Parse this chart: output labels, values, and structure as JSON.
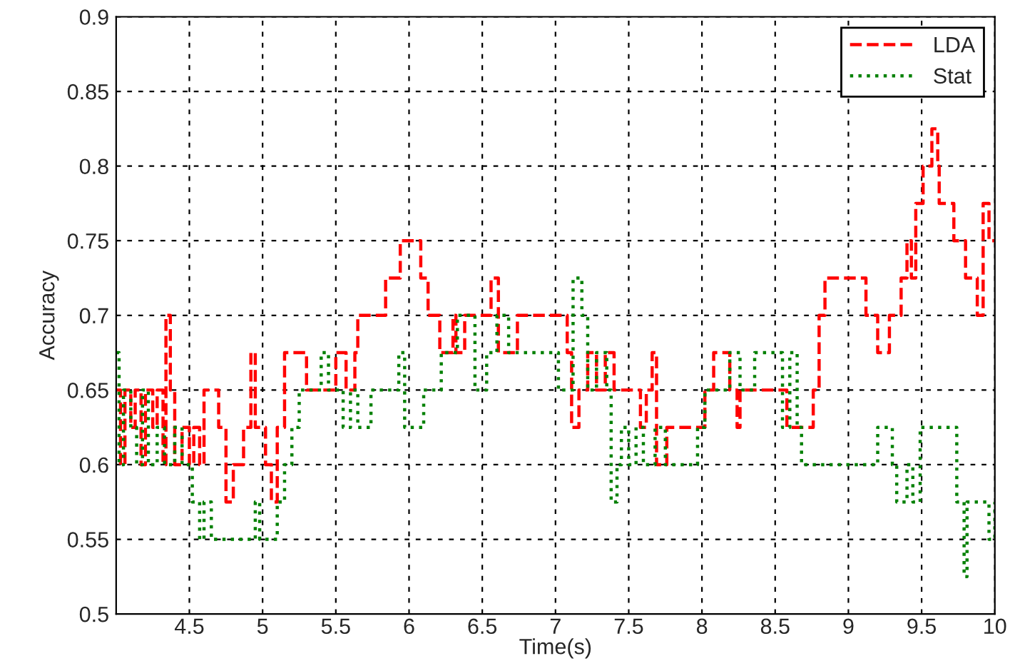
{
  "chart_data": {
    "type": "step",
    "xlabel": "Time(s)",
    "ylabel": "Accuracy",
    "xlim": [
      4,
      10
    ],
    "xticks": [
      4.5,
      5,
      5.5,
      6,
      6.5,
      7,
      7.5,
      8,
      8.5,
      9,
      9.5,
      10
    ],
    "ylim": [
      0.5,
      0.9
    ],
    "yticks": [
      0.5,
      0.55,
      0.6,
      0.65,
      0.7,
      0.75,
      0.8,
      0.85,
      0.9
    ],
    "grid": true,
    "legend": "top right",
    "series": [
      {
        "name": "LDA",
        "color": "#ff0000",
        "line_style": "dashed",
        "x": [
          4.0,
          4.03,
          4.06,
          4.1,
          4.13,
          4.17,
          4.2,
          4.25,
          4.28,
          4.32,
          4.34,
          4.37,
          4.4,
          4.45,
          4.5,
          4.53,
          4.57,
          4.6,
          4.7,
          4.75,
          4.8,
          4.87,
          4.92,
          4.95,
          5.02,
          5.06,
          5.1,
          5.15,
          5.3,
          5.5,
          5.57,
          5.63,
          5.65,
          5.84,
          5.94,
          6.08,
          6.13,
          6.21,
          6.3,
          6.32,
          6.38,
          6.56,
          6.61,
          6.74,
          7.08,
          7.11,
          7.16,
          7.22,
          7.28,
          7.34,
          7.4,
          7.58,
          7.62,
          7.66,
          7.69,
          7.76,
          8.02,
          8.08,
          8.19,
          8.24,
          8.26,
          8.58,
          8.76,
          8.8,
          8.84,
          9.12,
          9.2,
          9.28,
          9.36,
          9.4,
          9.43,
          9.46,
          9.51,
          9.57,
          9.61,
          9.62,
          9.72,
          9.8,
          9.88,
          9.92,
          9.96,
          10.0
        ],
        "values": [
          0.65,
          0.6,
          0.65,
          0.625,
          0.65,
          0.6,
          0.65,
          0.625,
          0.65,
          0.6,
          0.7,
          0.65,
          0.6,
          0.625,
          0.6,
          0.625,
          0.6,
          0.65,
          0.625,
          0.575,
          0.6,
          0.625,
          0.675,
          0.625,
          0.6,
          0.575,
          0.625,
          0.675,
          0.65,
          0.675,
          0.65,
          0.675,
          0.7,
          0.725,
          0.75,
          0.725,
          0.7,
          0.675,
          0.7,
          0.675,
          0.7,
          0.725,
          0.675,
          0.7,
          0.675,
          0.625,
          0.65,
          0.675,
          0.65,
          0.675,
          0.65,
          0.625,
          0.65,
          0.675,
          0.6,
          0.625,
          0.65,
          0.675,
          0.65,
          0.625,
          0.65,
          0.625,
          0.65,
          0.7,
          0.725,
          0.7,
          0.675,
          0.7,
          0.725,
          0.75,
          0.725,
          0.775,
          0.8,
          0.825,
          0.8,
          0.775,
          0.75,
          0.725,
          0.7,
          0.775,
          0.75,
          0.75
        ]
      },
      {
        "name": "Stat",
        "color": "#008000",
        "line_style": "dotted",
        "x": [
          4.0,
          4.02,
          4.05,
          4.1,
          4.14,
          4.18,
          4.22,
          4.28,
          4.33,
          4.4,
          4.45,
          4.52,
          4.57,
          4.6,
          4.65,
          4.95,
          4.98,
          5.1,
          5.15,
          5.2,
          5.25,
          5.4,
          5.45,
          5.55,
          5.6,
          5.65,
          5.74,
          5.93,
          5.97,
          6.1,
          6.22,
          6.33,
          6.45,
          6.53,
          6.6,
          6.68,
          7.02,
          7.12,
          7.18,
          7.22,
          7.28,
          7.35,
          7.38,
          7.42,
          7.45,
          7.5,
          7.55,
          7.6,
          7.68,
          7.75,
          7.97,
          8.02,
          8.19,
          8.26,
          8.36,
          8.55,
          8.6,
          8.65,
          8.68,
          9.2,
          9.3,
          9.33,
          9.4,
          9.44,
          9.49,
          9.74,
          9.79,
          9.81,
          9.96,
          10.0
        ],
        "values": [
          0.675,
          0.6,
          0.65,
          0.625,
          0.6,
          0.65,
          0.6,
          0.625,
          0.6,
          0.625,
          0.6,
          0.575,
          0.55,
          0.575,
          0.55,
          0.575,
          0.55,
          0.575,
          0.6,
          0.625,
          0.65,
          0.675,
          0.65,
          0.625,
          0.65,
          0.625,
          0.65,
          0.675,
          0.625,
          0.65,
          0.675,
          0.7,
          0.65,
          0.675,
          0.7,
          0.675,
          0.65,
          0.725,
          0.7,
          0.65,
          0.675,
          0.65,
          0.575,
          0.6,
          0.625,
          0.6,
          0.625,
          0.6,
          0.625,
          0.6,
          0.625,
          0.65,
          0.675,
          0.65,
          0.675,
          0.625,
          0.675,
          0.625,
          0.6,
          0.625,
          0.6,
          0.575,
          0.6,
          0.575,
          0.625,
          0.575,
          0.525,
          0.575,
          0.55,
          0.575
        ]
      }
    ]
  }
}
